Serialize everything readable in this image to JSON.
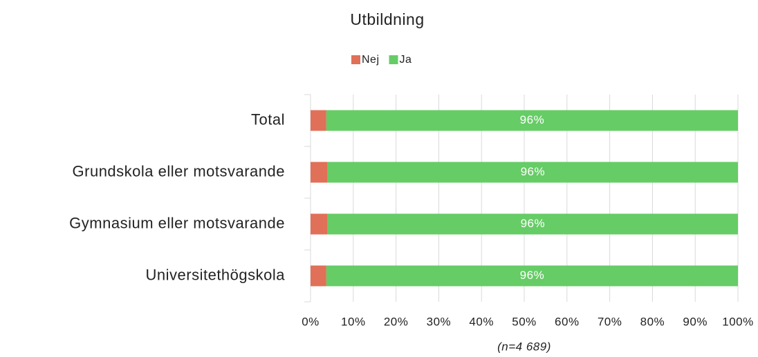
{
  "chart_data": {
    "type": "stacked_barh",
    "title": "Utbildning",
    "categories": [
      "Total",
      "Grundskola eller motsvarande",
      "Gymnasium eller motsvarande",
      "Universitethögskola"
    ],
    "series": [
      {
        "name": "Nej",
        "color": "#e07058",
        "values": [
          3.7,
          4,
          4,
          3.7
        ]
      },
      {
        "name": "Ja",
        "color": "#66cc66",
        "values": [
          96.3,
          96,
          96,
          96.3
        ],
        "value_labels": [
          "96%",
          "96%",
          "96%",
          "96%"
        ]
      }
    ],
    "xlim": [
      0,
      100
    ],
    "xticks": [
      {
        "value": 0,
        "label": "0%"
      },
      {
        "value": 10,
        "label": "10%"
      },
      {
        "value": 20,
        "label": "20%"
      },
      {
        "value": 30,
        "label": "30%"
      },
      {
        "value": 40,
        "label": "40%"
      },
      {
        "value": 50,
        "label": "50%"
      },
      {
        "value": 60,
        "label": "60%"
      },
      {
        "value": 70,
        "label": "70%"
      },
      {
        "value": 80,
        "label": "80%"
      },
      {
        "value": 90,
        "label": "90%"
      },
      {
        "value": 100,
        "label": "100%"
      }
    ],
    "xlabel": "(n=4 689)",
    "grid": true,
    "legend": "top"
  }
}
